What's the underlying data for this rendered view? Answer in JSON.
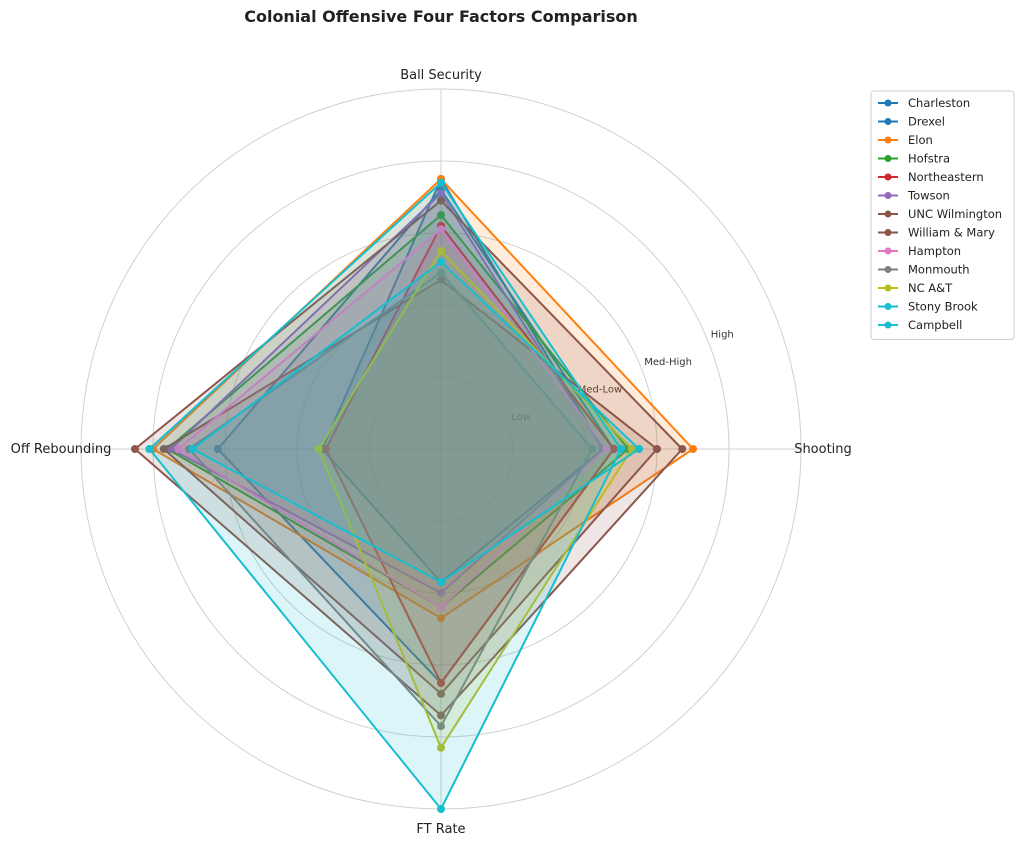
{
  "chart_data": {
    "type": "radar",
    "title": "Colonial Offensive Four Factors Comparison",
    "axes": [
      "Ball Security",
      "Shooting",
      "FT Rate",
      "Off Rebounding"
    ],
    "ring_labels": [
      "Low",
      "Med-Low",
      "Med-High",
      "High"
    ],
    "range": [
      0,
      5
    ],
    "grid": true,
    "legend_placement": "top-right outside",
    "series": [
      {
        "name": "Charleston",
        "color": "#1f77b4",
        "values": [
          3.75,
          2.25,
          1.85,
          1.65
        ]
      },
      {
        "name": "Drexel",
        "color": "#1f77b4",
        "values": [
          3.6,
          2.4,
          3.25,
          3.1
        ]
      },
      {
        "name": "Elon",
        "color": "#ff7f0e",
        "values": [
          3.75,
          3.5,
          2.35,
          4.0
        ]
      },
      {
        "name": "Hofstra",
        "color": "#2ca02c",
        "values": [
          3.25,
          2.6,
          2.2,
          3.8
        ]
      },
      {
        "name": "Northeastern",
        "color": "#d62728",
        "values": [
          3.1,
          2.4,
          3.25,
          1.6
        ]
      },
      {
        "name": "Towson",
        "color": "#9467bd",
        "values": [
          3.55,
          2.25,
          2.0,
          3.75
        ]
      },
      {
        "name": "UNC Wilmington",
        "color": "#8c564b",
        "values": [
          3.45,
          3.35,
          3.7,
          4.25
        ]
      },
      {
        "name": "William & Mary",
        "color": "#8c564b",
        "values": [
          2.35,
          3.0,
          3.4,
          3.85
        ]
      },
      {
        "name": "Hampton",
        "color": "#e377c2",
        "values": [
          3.05,
          2.3,
          2.2,
          3.65
        ]
      },
      {
        "name": "Monmouth",
        "color": "#7f7f7f",
        "values": [
          2.45,
          2.1,
          3.85,
          3.5
        ]
      },
      {
        "name": "NC A&T",
        "color": "#bcbd22",
        "values": [
          2.75,
          2.65,
          4.15,
          1.7
        ]
      },
      {
        "name": "Stony Brook",
        "color": "#17becf",
        "values": [
          3.7,
          2.5,
          5.0,
          4.05
        ]
      },
      {
        "name": "Campbell",
        "color": "#17becf",
        "values": [
          2.6,
          2.75,
          1.85,
          3.45
        ]
      }
    ]
  }
}
